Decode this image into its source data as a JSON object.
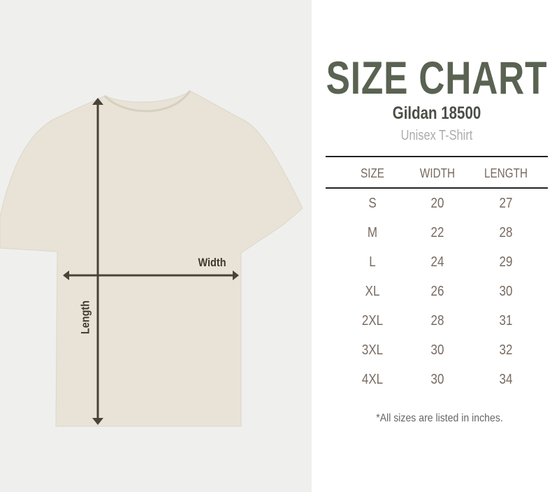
{
  "illustration": {
    "width_label": "Width",
    "length_label": "Length",
    "shirt_color": "#e8e3d6",
    "arrow_color": "#4a4236"
  },
  "heading": {
    "title": "SIZE CHART",
    "model": "Gildan 18500",
    "subtitle": "Unisex T-Shirt"
  },
  "table": {
    "headers": [
      "SIZE",
      "WIDTH",
      "LENGTH"
    ],
    "rows": [
      [
        "S",
        "20",
        "27"
      ],
      [
        "M",
        "22",
        "28"
      ],
      [
        "L",
        "24",
        "29"
      ],
      [
        "XL",
        "26",
        "30"
      ],
      [
        "2XL",
        "28",
        "31"
      ],
      [
        "3XL",
        "30",
        "32"
      ],
      [
        "4XL",
        "30",
        "34"
      ]
    ]
  },
  "footnote": "*All sizes are listed in inches.",
  "colors": {
    "title": "#5a6352",
    "cell_text": "#776a61",
    "left_bg": "#efefee"
  }
}
